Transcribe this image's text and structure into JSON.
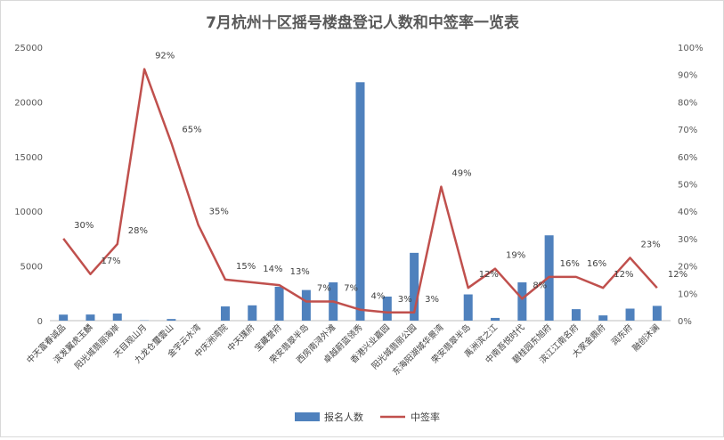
{
  "chart_data": {
    "type": "bar+line",
    "title": "7月杭州十区摇号楼盘登记人数和中签率一览表",
    "categories": [
      "中天富春诚品",
      "滨发翼虎玉麟",
      "阳光城翡丽海岸",
      "天目观山月",
      "九龙仓璽雲山",
      "金宇云水湾",
      "中庆洲湾院",
      "中天璞府",
      "宝藏誉府",
      "荣安翡翠半岛",
      "西房南浔外滩",
      "卓越蔚蓝领秀",
      "香港兴业嘉园",
      "阳光城翡丽公园",
      "东海阳湖城华景湾",
      "荣安翡翠半岛",
      "禹洲滨之江",
      "中南吾悦时代",
      "碧桂园东旭府",
      "滨江江南名府",
      "大家金鼎府",
      "润东府",
      "融创沐澜"
    ],
    "series": [
      {
        "name": "报名人数",
        "kind": "bar",
        "axis": "left",
        "color": "#4f81bd",
        "values": [
          550,
          560,
          650,
          30,
          150,
          0,
          1300,
          1400,
          3100,
          2800,
          3500,
          21800,
          2200,
          6200,
          0,
          2400,
          250,
          3500,
          7800,
          1050,
          480,
          1100,
          1350
        ]
      },
      {
        "name": "中签率",
        "kind": "line",
        "axis": "right",
        "color": "#c0504d",
        "values": [
          30,
          17,
          28,
          92,
          65,
          35,
          15,
          14,
          13,
          7,
          7,
          4,
          3,
          3,
          49,
          12,
          19,
          8,
          16,
          16,
          12,
          23,
          12
        ],
        "labels": [
          "30%",
          "17%",
          "28%",
          "92%",
          "65%",
          "35%",
          "15%",
          "14%",
          "13%",
          "7%",
          "7%",
          "4%",
          "3%",
          "3%",
          "49%",
          "12%",
          "19%",
          "8%",
          "16%",
          "16%",
          "12%",
          "23%",
          "12%"
        ]
      }
    ],
    "y_left": {
      "min": 0,
      "max": 25000,
      "ticks": [
        "0",
        "5000",
        "10000",
        "15000",
        "20000",
        "25000"
      ]
    },
    "y_right": {
      "min": 0,
      "max": 100,
      "ticks": [
        "0%",
        "10%",
        "20%",
        "30%",
        "40%",
        "50%",
        "60%",
        "70%",
        "80%",
        "90%",
        "100%"
      ]
    },
    "legend_position": "bottom",
    "grid": false
  }
}
